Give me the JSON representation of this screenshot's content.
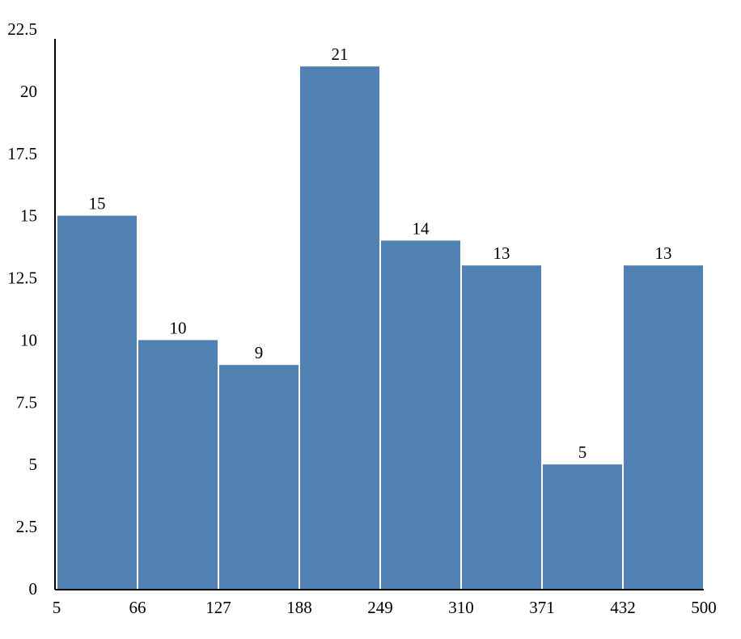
{
  "chart_data": {
    "type": "bar",
    "title": "",
    "xlabel": "",
    "ylabel": "",
    "bin_edges": [
      5,
      66,
      127,
      188,
      249,
      310,
      371,
      432,
      500
    ],
    "x_tick_labels": [
      "5",
      "66",
      "127",
      "188",
      "249",
      "310",
      "371",
      "432",
      "500"
    ],
    "values": [
      15,
      10,
      9,
      21,
      14,
      13,
      5,
      13
    ],
    "data_labels": [
      "15",
      "10",
      "9",
      "21",
      "14",
      "13",
      "5",
      "13"
    ],
    "ylim": [
      0,
      22.5
    ],
    "y_ticks": [
      0,
      2.5,
      5,
      7.5,
      10,
      12.5,
      15,
      17.5,
      20,
      22.5
    ],
    "y_tick_labels": [
      "0",
      "2.5",
      "5",
      "7.5",
      "10",
      "12.5",
      "15",
      "17.5",
      "20",
      "22.5"
    ],
    "bar_color": "#5181b2",
    "grid": false,
    "legend": "none"
  }
}
